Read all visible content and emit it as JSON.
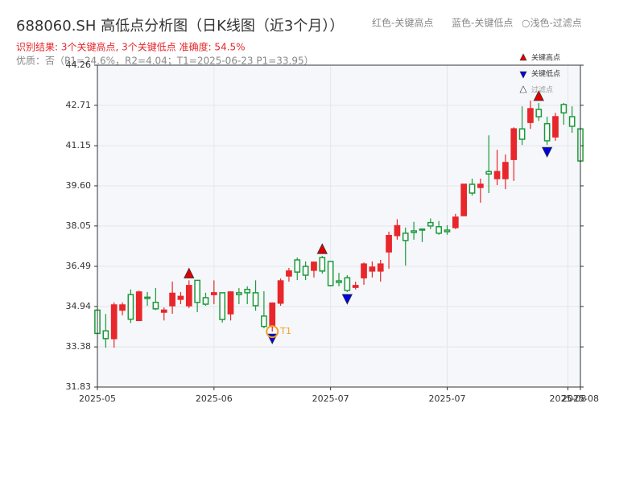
{
  "chart_data": {
    "type": "candlestick",
    "title": "688060.SH 高低点分析图（日K线图（近3个月））",
    "header_legend": [
      "红色-关键高点",
      "蓝色-关键低点",
      "○浅色-过滤点"
    ],
    "subtitle": "识别结果: 3个关键高点, 3个关键低点  准确度: 54.5%",
    "note": "优质：否（P1=24.6%，R2=4.04；T1=2025-06-23 P1=33.95）",
    "up_color": "#e8262b",
    "down_color": "#1a9a3a",
    "grid": true,
    "x": [
      0,
      1,
      2,
      3,
      4,
      5,
      6,
      7,
      8,
      9,
      10,
      11,
      12,
      13,
      14,
      15,
      16,
      17,
      18,
      19,
      20,
      21,
      22,
      23,
      24,
      25,
      26,
      27,
      28,
      29,
      30,
      31,
      32,
      33,
      34,
      35,
      36,
      37,
      38,
      39,
      40,
      41,
      42,
      43,
      44,
      45,
      46,
      47,
      48,
      49,
      50,
      51,
      52,
      53,
      54,
      55,
      56,
      57,
      58
    ],
    "xlim": [
      0,
      58
    ],
    "xticks": [
      {
        "value": 0,
        "label": "2025-05"
      },
      {
        "value": 14,
        "label": "2025-06"
      },
      {
        "value": 28,
        "label": "2025-07"
      },
      {
        "value": 42,
        "label": "2025-07"
      },
      {
        "value": 56.5,
        "label": "2025-08"
      },
      {
        "value": 58,
        "label": "2025-08"
      }
    ],
    "ylim": [
      31.83,
      44.26
    ],
    "yticks": [
      31.83,
      33.38,
      34.94,
      36.49,
      38.05,
      {
        "value": 39.6,
        "label": "39.60"
      },
      41.15,
      42.71,
      44.26
    ],
    "open": [
      34.8,
      34.0,
      33.7,
      34.8,
      35.4,
      34.4,
      35.3,
      35.1,
      34.72,
      34.97,
      35.22,
      34.97,
      35.95,
      35.28,
      35.4,
      35.47,
      34.66,
      35.47,
      35.6,
      35.47,
      34.57,
      34.17,
      35.07,
      36.12,
      36.74,
      36.49,
      36.34,
      36.83,
      36.68,
      35.93,
      36.05,
      35.68,
      36.05,
      36.31,
      36.31,
      37.05,
      37.68,
      37.77,
      37.86,
      37.93,
      38.18,
      38.02,
      37.89,
      37.99,
      38.45,
      39.66,
      39.54,
      40.15,
      39.88,
      39.88,
      40.62,
      41.8,
      42.05,
      42.55,
      42.0,
      41.49,
      42.74,
      42.27,
      41.8
    ],
    "high": [
      34.85,
      34.65,
      35.1,
      35.1,
      35.6,
      35.55,
      35.5,
      35.65,
      34.9,
      35.9,
      35.5,
      35.95,
      35.95,
      35.47,
      35.95,
      35.47,
      35.53,
      35.65,
      35.72,
      35.95,
      35.53,
      35.1,
      36.02,
      36.43,
      36.83,
      36.68,
      36.68,
      36.89,
      36.68,
      36.24,
      36.15,
      35.9,
      36.64,
      36.68,
      36.74,
      37.83,
      38.31,
      37.99,
      38.21,
      37.93,
      38.34,
      38.24,
      38.08,
      38.52,
      39.66,
      39.88,
      39.88,
      41.55,
      40.99,
      40.81,
      41.86,
      42.67,
      42.89,
      42.8,
      42.27,
      42.42,
      42.8,
      42.67,
      41.86
    ],
    "low": [
      33.9,
      33.35,
      33.35,
      34.6,
      34.3,
      34.4,
      34.97,
      34.8,
      34.4,
      34.66,
      35.03,
      34.88,
      34.72,
      34.97,
      35.03,
      34.32,
      34.4,
      35.03,
      35.03,
      34.78,
      34.1,
      33.97,
      34.97,
      35.9,
      35.96,
      35.96,
      36.06,
      36.21,
      35.72,
      35.72,
      35.5,
      35.6,
      35.78,
      36.06,
      35.9,
      36.4,
      37.52,
      36.52,
      37.52,
      37.43,
      37.93,
      37.71,
      37.71,
      37.93,
      38.45,
      39.22,
      38.95,
      39.32,
      39.63,
      39.47,
      39.79,
      41.18,
      41.8,
      42.11,
      41.18,
      41.34,
      41.96,
      41.65,
      40.5
    ],
    "close": [
      33.9,
      33.7,
      35.0,
      35.0,
      34.45,
      35.5,
      35.25,
      34.85,
      34.8,
      35.45,
      35.33,
      35.75,
      35.1,
      35.03,
      35.47,
      34.44,
      35.5,
      35.4,
      35.47,
      34.97,
      34.17,
      35.07,
      35.93,
      36.31,
      36.27,
      36.15,
      36.65,
      36.31,
      35.75,
      35.87,
      35.56,
      35.75,
      36.58,
      36.46,
      36.58,
      37.68,
      38.06,
      37.49,
      37.8,
      37.89,
      38.05,
      37.77,
      37.83,
      38.39,
      39.66,
      39.32,
      39.66,
      40.06,
      40.15,
      40.5,
      41.8,
      41.4,
      42.58,
      42.27,
      41.34,
      42.27,
      42.42,
      41.9,
      40.56
    ],
    "key_highs": {
      "name": "关键高点",
      "color": "#e00000",
      "x": [
        11,
        27,
        53
      ]
    },
    "key_lows": {
      "name": "关键低点",
      "color": "#0000e0",
      "x": [
        21,
        30,
        54
      ]
    },
    "filtered": {
      "name": "过滤点"
    },
    "annotation": {
      "text": "T1",
      "x": 21,
      "color": "#f0a020"
    }
  }
}
